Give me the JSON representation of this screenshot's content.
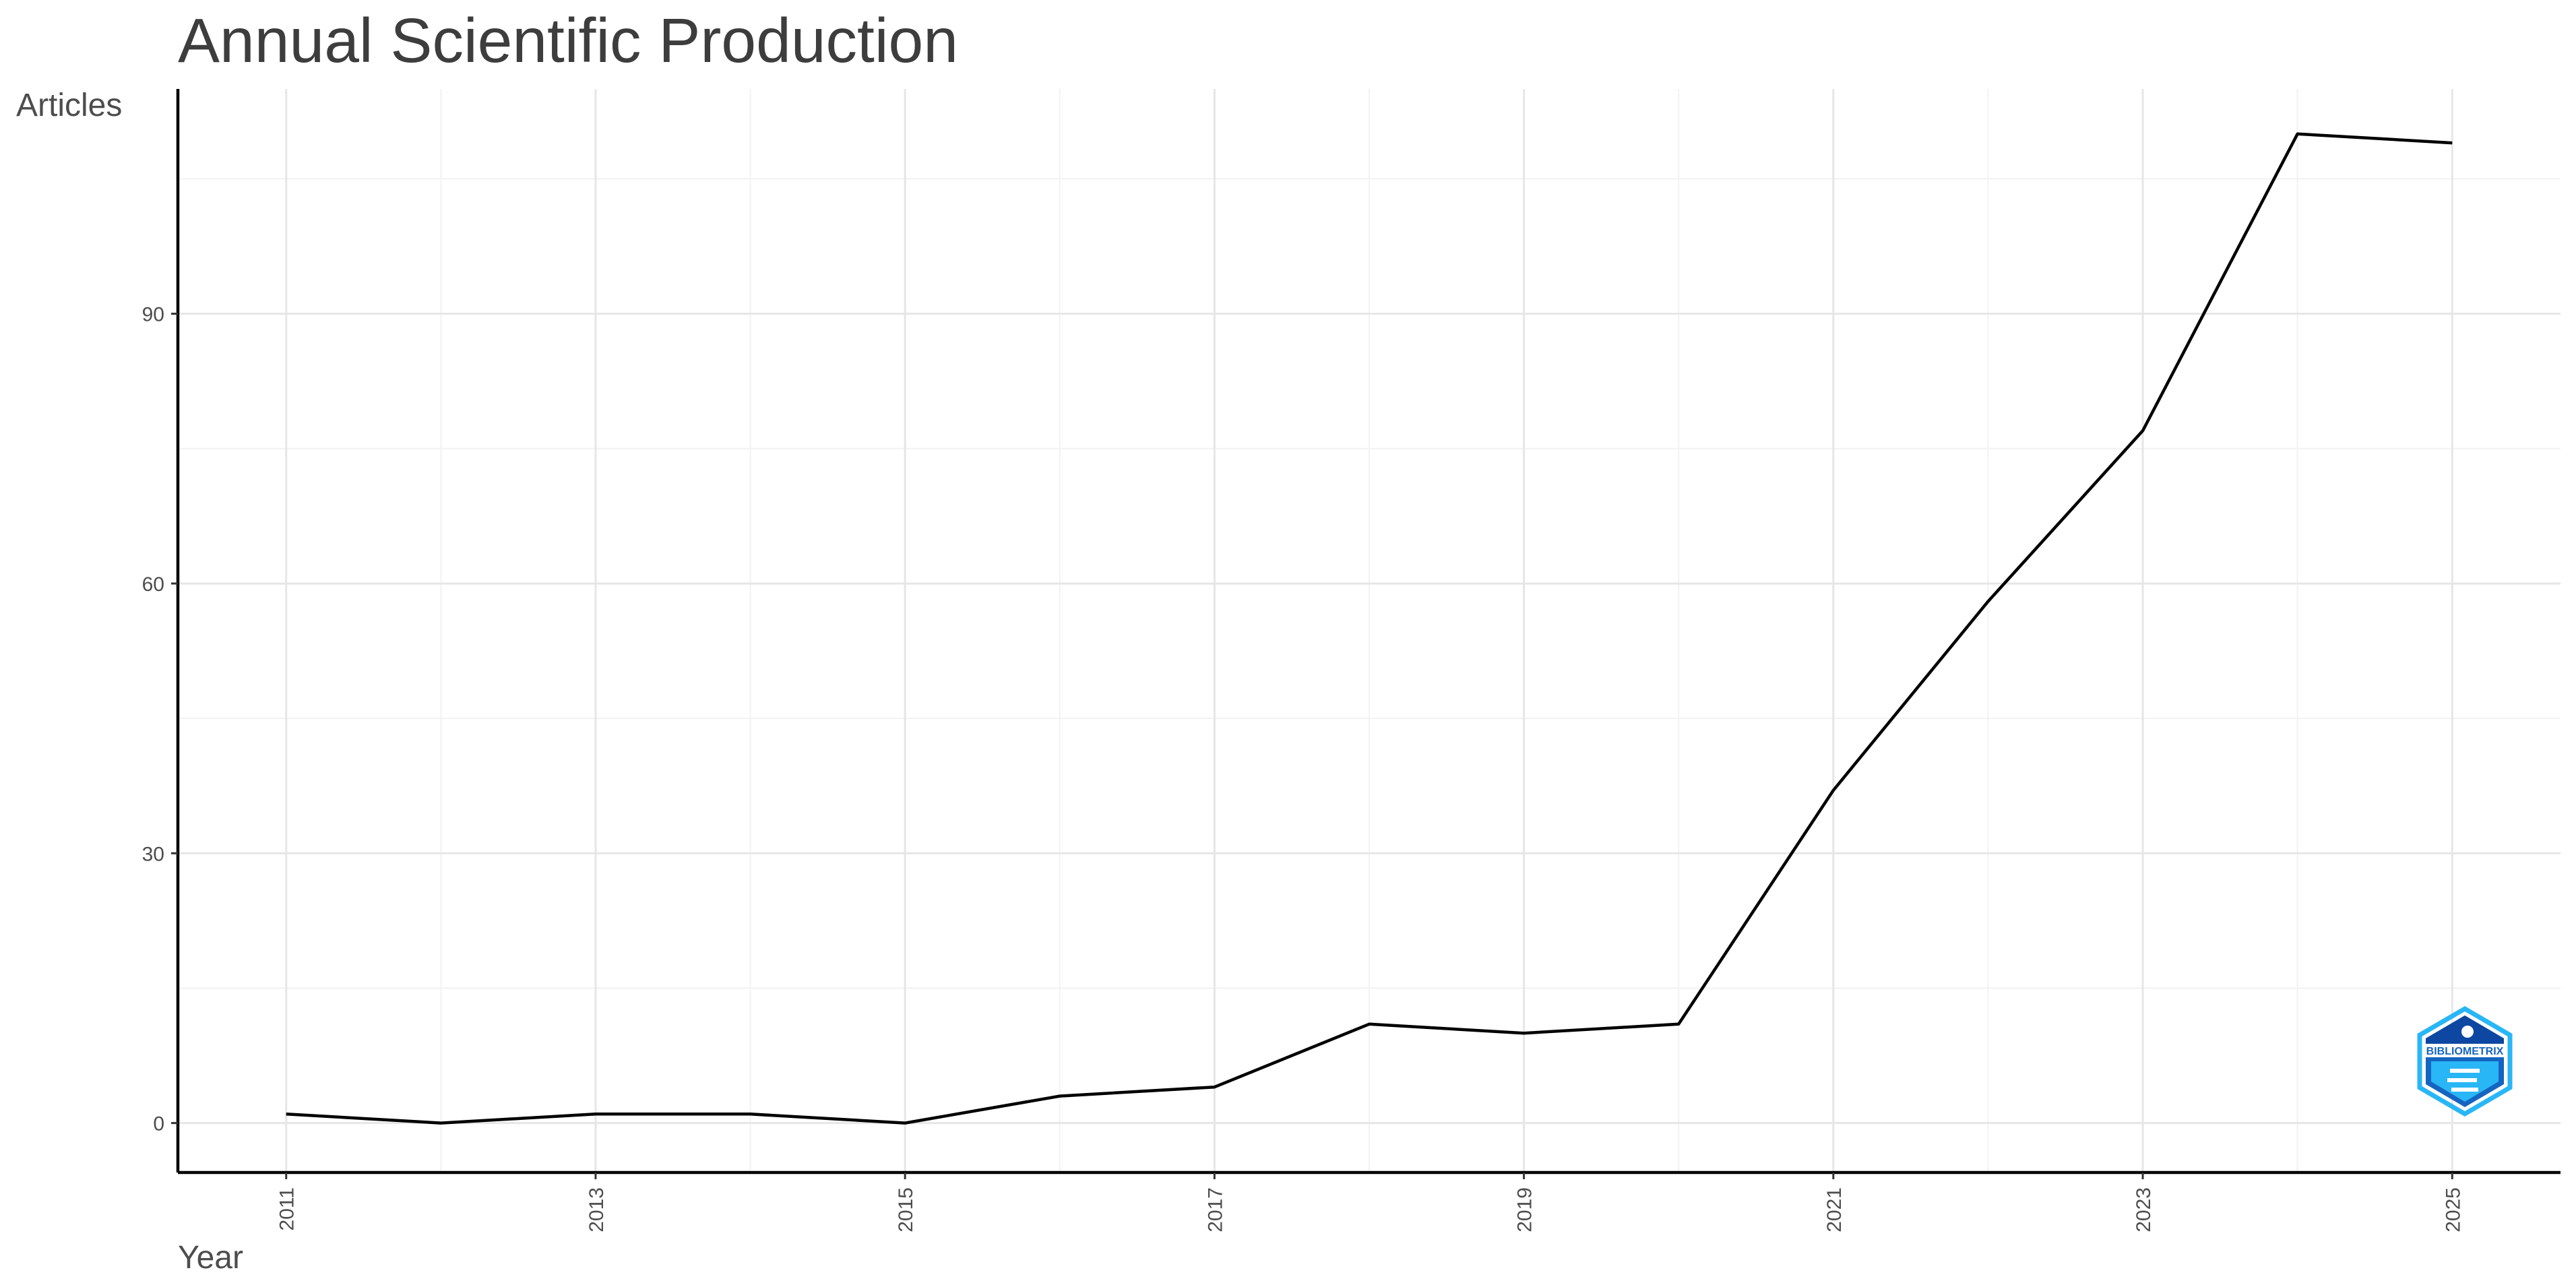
{
  "chart_data": {
    "type": "line",
    "title": "Annual Scientific Production",
    "xlabel": "Year",
    "ylabel": "Articles",
    "x": [
      2011,
      2012,
      2013,
      2014,
      2015,
      2016,
      2017,
      2018,
      2019,
      2020,
      2021,
      2022,
      2023,
      2024,
      2025
    ],
    "values": [
      1,
      0,
      1,
      1,
      0,
      3,
      4,
      11,
      10,
      11,
      37,
      58,
      77,
      110,
      109
    ],
    "xticks": [
      2011,
      2013,
      2015,
      2017,
      2019,
      2021,
      2023,
      2025
    ],
    "yticks": [
      0,
      30,
      60,
      90
    ],
    "xlim": [
      2010.3,
      2025.7
    ],
    "ylim": [
      -5.5,
      115
    ],
    "grid": true,
    "series_color": "#000000"
  },
  "logo": {
    "text": "BIBLIOMETRIX",
    "colors": [
      "#1565c0",
      "#29b6f6"
    ]
  }
}
